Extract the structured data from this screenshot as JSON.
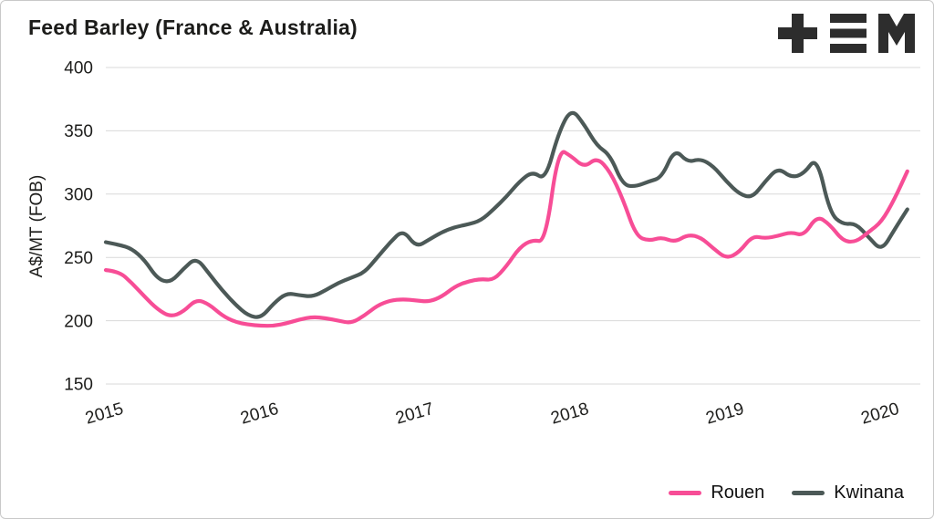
{
  "logo": {
    "icon": "tem-logo",
    "color": "#2d2d2d"
  },
  "chart_data": {
    "type": "line",
    "title": "Feed Barley (France & Australia)",
    "xlabel": "",
    "ylabel": "A$/MT (FOB)",
    "ylim": [
      150,
      400
    ],
    "yticks": [
      400,
      350,
      300,
      250,
      200,
      150
    ],
    "xlim": [
      2015,
      2020.25
    ],
    "xticks": [
      2015,
      2016,
      2017,
      2018,
      2019,
      2020
    ],
    "grid": "horizontal",
    "legend_position": "bottom-right",
    "months": [
      "2015-01",
      "2015-02",
      "2015-03",
      "2015-04",
      "2015-05",
      "2015-06",
      "2015-07",
      "2015-08",
      "2015-09",
      "2015-10",
      "2015-11",
      "2015-12",
      "2016-01",
      "2016-02",
      "2016-03",
      "2016-04",
      "2016-05",
      "2016-06",
      "2016-07",
      "2016-08",
      "2016-09",
      "2016-10",
      "2016-11",
      "2016-12",
      "2017-01",
      "2017-02",
      "2017-03",
      "2017-04",
      "2017-05",
      "2017-06",
      "2017-07",
      "2017-08",
      "2017-09",
      "2017-10",
      "2017-11",
      "2017-12",
      "2018-01",
      "2018-02",
      "2018-03",
      "2018-04",
      "2018-05",
      "2018-06",
      "2018-07",
      "2018-08",
      "2018-09",
      "2018-10",
      "2018-11",
      "2018-12",
      "2019-01",
      "2019-02",
      "2019-03",
      "2019-04",
      "2019-05",
      "2019-06",
      "2019-07",
      "2019-08",
      "2019-09",
      "2019-10",
      "2019-11",
      "2019-12",
      "2020-01",
      "2020-02",
      "2020-03"
    ],
    "series": [
      {
        "name": "Rouen",
        "color": "#f74d96",
        "values": [
          240,
          239,
          230,
          219,
          209,
          203,
          207,
          217,
          213,
          204,
          199,
          197,
          196,
          196,
          198,
          201,
          203,
          202,
          200,
          198,
          204,
          212,
          216,
          217,
          216,
          215,
          219,
          227,
          231,
          233,
          232,
          243,
          258,
          264,
          262,
          336,
          330,
          321,
          329,
          318,
          296,
          267,
          263,
          266,
          262,
          268,
          266,
          257,
          249,
          254,
          267,
          265,
          267,
          270,
          267,
          283,
          276,
          263,
          262,
          270,
          278,
          296,
          318
        ]
      },
      {
        "name": "Kwinana",
        "color": "#4c5957",
        "values": [
          262,
          260,
          257,
          248,
          233,
          230,
          241,
          250,
          237,
          224,
          213,
          204,
          202,
          214,
          222,
          220,
          219,
          224,
          230,
          234,
          238,
          250,
          262,
          272,
          258,
          264,
          270,
          274,
          276,
          279,
          288,
          298,
          310,
          318,
          311,
          348,
          368,
          355,
          338,
          331,
          307,
          306,
          310,
          313,
          336,
          325,
          328,
          322,
          310,
          300,
          297,
          310,
          321,
          313,
          316,
          330,
          285,
          276,
          277,
          266,
          255,
          272,
          288
        ]
      }
    ]
  }
}
